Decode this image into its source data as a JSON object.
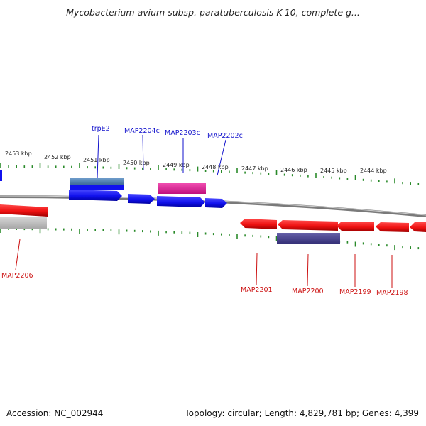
{
  "title": "Mycobacterium avium subsp. paratuberculosis K-10, complete g...",
  "footer": {
    "accession": "Accession: NC_002944",
    "summary": "Topology: circular; Length: 4,829,781 bp; Genes: 4,399"
  },
  "scale_labels": [
    {
      "kbp": 2453,
      "text": "2453 kbp"
    },
    {
      "kbp": 2452,
      "text": "2452 kbp"
    },
    {
      "kbp": 2451,
      "text": "2451 kbp"
    },
    {
      "kbp": 2450,
      "text": "2450 kbp"
    },
    {
      "kbp": 2449,
      "text": "2449 kbp"
    },
    {
      "kbp": 2448,
      "text": "2448 kbp"
    },
    {
      "kbp": 2447,
      "text": "2447 kbp"
    },
    {
      "kbp": 2446,
      "text": "2446 kbp"
    },
    {
      "kbp": 2445,
      "text": "2445 kbp"
    },
    {
      "kbp": 2444,
      "text": "2444 kbp"
    }
  ],
  "features": [
    {
      "name": "trpE2",
      "strand": "+",
      "color": "#1111cc"
    },
    {
      "name": "MAP2204c",
      "strand": "+",
      "color": "#1111cc"
    },
    {
      "name": "MAP2203c",
      "strand": "+",
      "color": "#1111cc"
    },
    {
      "name": "MAP2202c",
      "strand": "+",
      "color": "#1111cc"
    },
    {
      "name": "MAP2206",
      "strand": "-",
      "color": "#cc1111"
    },
    {
      "name": "MAP2201",
      "strand": "-",
      "color": "#cc1111"
    },
    {
      "name": "MAP2200",
      "strand": "-",
      "color": "#cc1111"
    },
    {
      "name": "MAP2199",
      "strand": "-",
      "color": "#cc1111"
    },
    {
      "name": "MAP2198",
      "strand": "-",
      "color": "#cc1111"
    }
  ],
  "colors": {
    "forward_cds": "#1111ee",
    "reverse_cds": "#ee1111",
    "forward_label": "#1111cc",
    "reverse_label": "#cc1111",
    "backbone": "#8a8a8a",
    "tick": "#2a8a2a",
    "blast_blue": "#5b86b8",
    "blast_pink": "#e0259a",
    "blast_grey": "#bdbdbd",
    "blast_purple": "#4a4490"
  }
}
